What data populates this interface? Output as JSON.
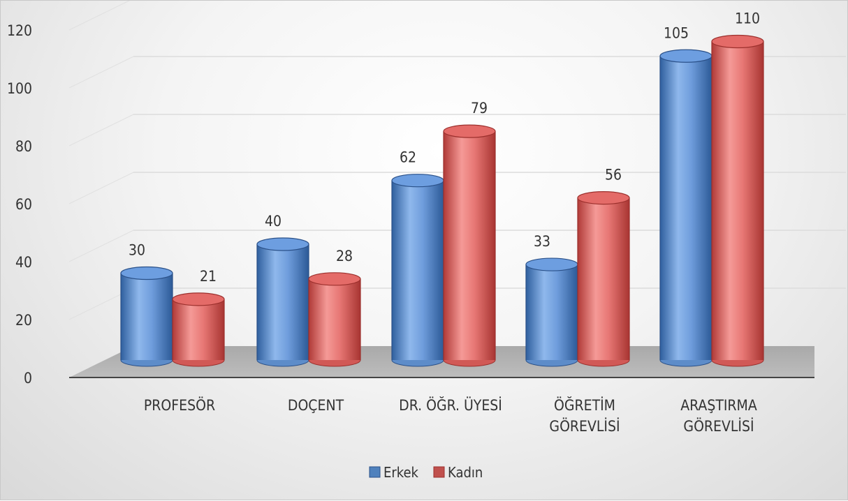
{
  "chart_data": {
    "type": "bar",
    "style": "3d-cylinder",
    "categories": [
      [
        "PROFESÖR"
      ],
      [
        "DOÇENT"
      ],
      [
        "DR. ÖĞR. ÜYESİ"
      ],
      [
        "ÖĞRETİM",
        "GÖREVLİSİ"
      ],
      [
        "ARAŞTIRMA",
        "GÖREVLİSİ"
      ]
    ],
    "series": [
      {
        "name": "Erkek",
        "values": [
          30,
          40,
          62,
          33,
          105
        ],
        "color": "#4f81bd"
      },
      {
        "name": "Kadın",
        "values": [
          21,
          28,
          79,
          56,
          110
        ],
        "color": "#c0504d"
      }
    ],
    "yticks": [
      "0",
      "20",
      "40",
      "60",
      "80",
      "100",
      "120"
    ],
    "ylim": [
      0,
      120
    ],
    "grid": true,
    "legend": "bottom"
  }
}
